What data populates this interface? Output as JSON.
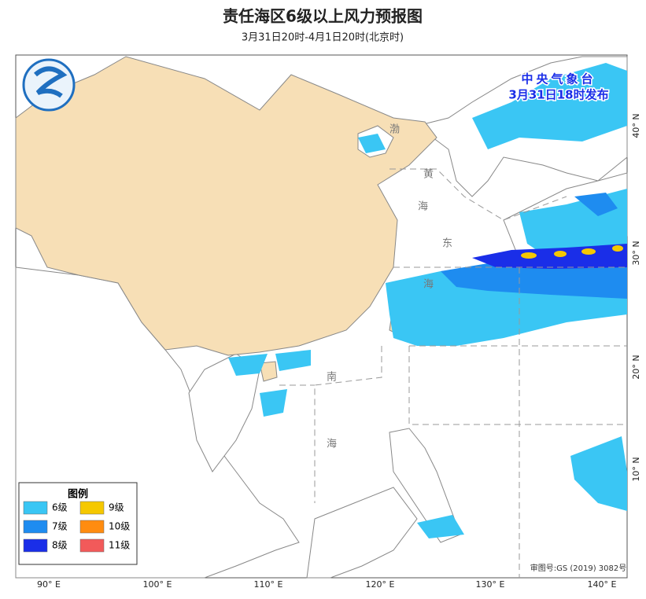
{
  "header": {
    "title": "责任海区6级以上风力预报图",
    "subtitle": "3月31日20时-4月1日20时(北京时)"
  },
  "issuer": {
    "agency": "中央气象台",
    "time": "3月31日18时发布"
  },
  "legend": {
    "title": "图例",
    "items": [
      {
        "label": "6级",
        "color": "#3ac6f4"
      },
      {
        "label": "7级",
        "color": "#1e8cf0"
      },
      {
        "label": "8级",
        "color": "#1a2ee8"
      },
      {
        "label": "9级",
        "color": "#f5c800"
      },
      {
        "label": "10级",
        "color": "#ff8c10"
      },
      {
        "label": "11级",
        "color": "#f25a5a"
      }
    ]
  },
  "axes": {
    "lon_labels": [
      "90° E",
      "100° E",
      "110° E",
      "120° E",
      "130° E",
      "140° E"
    ],
    "lat_labels": [
      "10° N",
      "20° N",
      "30° N",
      "40° N"
    ]
  },
  "sea_labels": [
    "渤",
    "黄",
    "海",
    "东",
    "海",
    "南",
    "海"
  ],
  "footer": {
    "approval": "审图号:GS (2019) 3082号"
  }
}
